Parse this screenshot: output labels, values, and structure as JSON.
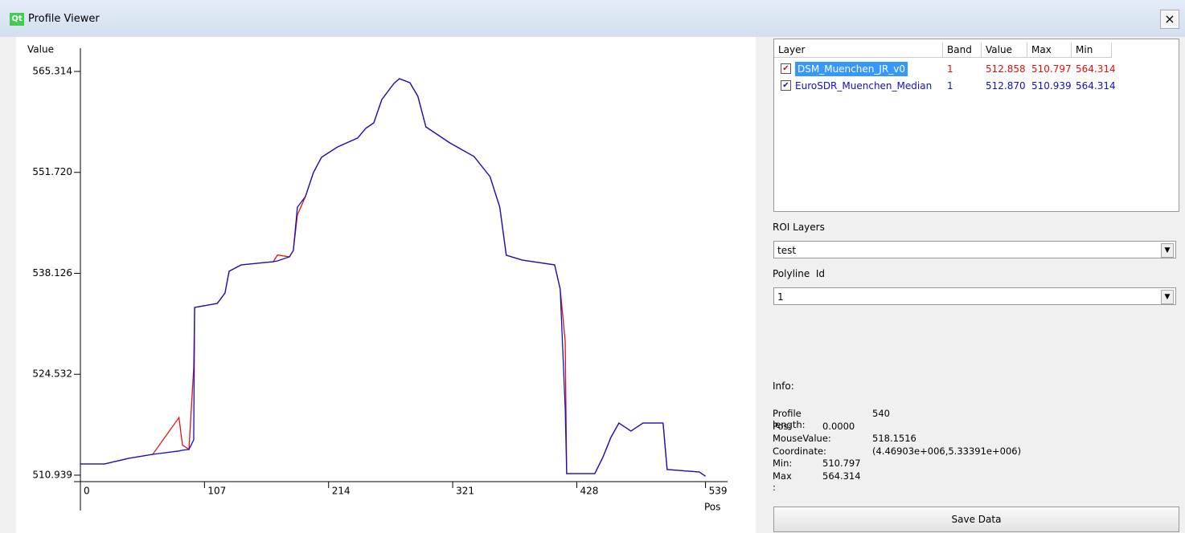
{
  "window": {
    "icon": "Qt",
    "title": "Profile Viewer",
    "close": "×"
  },
  "chart_data": {
    "type": "line",
    "ylabel": "Value",
    "xlabel": "Pos",
    "x": [
      0,
      20.8,
      41.6,
      62.4,
      85,
      88,
      93.6,
      97.7,
      98.5,
      118,
      124.7,
      128.2,
      138.6,
      166.3,
      170,
      180.2,
      183.6,
      187.1,
      194,
      200.9,
      207.9,
      221.7,
      239,
      246,
      253,
      259.9,
      270.3,
      275.1,
      284.1,
      291,
      297.9,
      318.6,
      339.4,
      353.2,
      361.6,
      367.2,
      381,
      408.9,
      413.7,
      418,
      419.3,
      443.5,
      450.4,
      457.4,
      464.3,
      474.7,
      485.1,
      502.4,
      505.9,
      533.6,
      539
    ],
    "series": [
      {
        "name": "DSM_Muenchen_JR_v0",
        "color": "#e01010",
        "values": [
          512.45,
          512.45,
          513.21,
          513.75,
          518.7,
          515,
          514.4,
          525.4,
          533.53,
          534.07,
          535.48,
          538.4,
          539.26,
          539.69,
          540.6,
          540.34,
          541.2,
          546,
          548.45,
          551.69,
          553.75,
          555.15,
          556.34,
          557.64,
          558.4,
          561.53,
          563.69,
          564.34,
          563.8,
          561.96,
          557.85,
          555.69,
          553.86,
          551.15,
          547.04,
          540.56,
          539.91,
          539.26,
          536.0,
          529,
          511.15,
          511.15,
          513.32,
          516.02,
          517.96,
          516.88,
          517.96,
          517.96,
          511.7,
          511.37,
          510.797
        ]
      },
      {
        "name": "EuroSDR_Muenchen_Median",
        "color": "#1010c8",
        "values": [
          512.45,
          512.45,
          513.21,
          513.75,
          514.2,
          514.3,
          514.4,
          515.7,
          533.53,
          534.07,
          535.48,
          538.4,
          539.26,
          539.69,
          539.8,
          540.34,
          541.2,
          547.04,
          548.45,
          551.69,
          553.75,
          555.15,
          556.34,
          557.64,
          558.4,
          561.53,
          563.69,
          564.34,
          563.8,
          561.96,
          557.85,
          555.69,
          553.86,
          551.15,
          547.04,
          540.56,
          539.91,
          539.26,
          536.0,
          520,
          511.15,
          511.15,
          513.32,
          516.02,
          517.96,
          516.88,
          517.96,
          517.96,
          511.7,
          511.37,
          510.8
        ]
      }
    ],
    "xlim": [
      0,
      558
    ],
    "ylim": [
      510.07,
      568.45
    ],
    "xticks": [
      0,
      107,
      214,
      321,
      428,
      539
    ],
    "yticks": [
      510.939,
      524.532,
      538.126,
      {
        "value": 551.72,
        "label": "551.720"
      },
      565.314
    ]
  },
  "layer_table": {
    "headers": [
      "Layer",
      "Band",
      "Value",
      "Max",
      "Min"
    ],
    "rows": [
      [
        "DSM_Muenchen_JR_v0",
        "1",
        "512.858",
        "510.797",
        "564.314"
      ],
      [
        "EuroSDR_Muenchen_Median",
        "1",
        "512.870",
        "510.939",
        "564.314"
      ]
    ]
  },
  "roi": {
    "label": "ROI Layers",
    "selected": "test"
  },
  "polyline": {
    "label": "Polyline  Id",
    "selected": "1"
  },
  "info": {
    "title": "Info:",
    "rows": [
      [
        "Profile length:",
        "540"
      ],
      [
        "Pos:",
        "0.0000"
      ],
      [
        "MouseValue:",
        "518.1516"
      ],
      [
        "Coordinate:",
        "(4.46903e+006,5.33391e+006)"
      ],
      [
        "Min:",
        "510.797"
      ],
      [
        "Max :",
        "564.314"
      ]
    ]
  },
  "save_button": "Save Data"
}
